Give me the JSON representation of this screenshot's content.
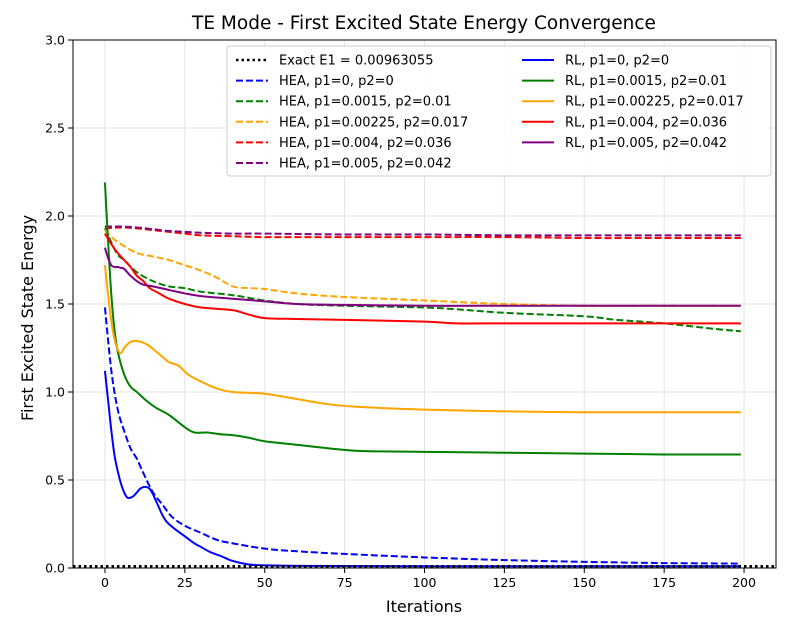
{
  "chart_data": {
    "type": "line",
    "title": "TE Mode - First Excited State Energy Convergence",
    "xlabel": "Iterations",
    "ylabel": "First Excited State Energy",
    "xlim": [
      -10,
      210
    ],
    "ylim": [
      0.0,
      3.0
    ],
    "xticks": [
      0,
      25,
      50,
      75,
      100,
      125,
      150,
      175,
      200
    ],
    "yticks": [
      0.0,
      0.5,
      1.0,
      1.5,
      2.0,
      2.5,
      3.0
    ],
    "xtick_labels": [
      "0",
      "25",
      "50",
      "75",
      "100",
      "125",
      "150",
      "175",
      "200"
    ],
    "ytick_labels": [
      "0.0",
      "0.5",
      "1.0",
      "1.5",
      "2.0",
      "2.5",
      "3.0"
    ],
    "grid": true,
    "legend_position": "top-right",
    "reference_line": {
      "name": "Exact E1 = 0.00963055",
      "value": 0.00963055,
      "color": "#000000",
      "style": "dotted"
    },
    "series": [
      {
        "name": "HEA, p1=0, p2=0",
        "color": "#0000ff",
        "style": "dashed",
        "x": [
          0,
          2,
          4,
          6,
          8,
          10,
          12,
          15,
          18,
          21,
          25,
          30,
          35,
          40,
          50,
          60,
          75,
          100,
          125,
          150,
          175,
          199
        ],
        "y": [
          1.48,
          1.12,
          0.9,
          0.78,
          0.68,
          0.62,
          0.54,
          0.43,
          0.36,
          0.29,
          0.24,
          0.2,
          0.16,
          0.14,
          0.11,
          0.095,
          0.08,
          0.06,
          0.045,
          0.035,
          0.028,
          0.025
        ]
      },
      {
        "name": "HEA, p1=0.0015, p2=0.01",
        "color": "#008000",
        "style": "dashed",
        "x": [
          0,
          2,
          4,
          6,
          10,
          15,
          20,
          25,
          30,
          40,
          50,
          60,
          75,
          100,
          110,
          125,
          150,
          160,
          175,
          190,
          199
        ],
        "y": [
          1.93,
          1.85,
          1.78,
          1.75,
          1.68,
          1.63,
          1.6,
          1.59,
          1.57,
          1.55,
          1.52,
          1.5,
          1.49,
          1.48,
          1.47,
          1.45,
          1.43,
          1.41,
          1.39,
          1.36,
          1.345
        ]
      },
      {
        "name": "HEA, p1=0.00225, p2=0.017",
        "color": "#ffa500",
        "style": "dashed",
        "x": [
          0,
          2,
          5,
          10,
          15,
          20,
          25,
          30,
          35,
          40,
          45,
          50,
          60,
          75,
          100,
          125,
          150,
          175,
          199
        ],
        "y": [
          1.92,
          1.88,
          1.84,
          1.79,
          1.77,
          1.75,
          1.72,
          1.69,
          1.65,
          1.6,
          1.59,
          1.585,
          1.56,
          1.54,
          1.52,
          1.5,
          1.49,
          1.49,
          1.49
        ]
      },
      {
        "name": "HEA, p1=0.004, p2=0.036",
        "color": "#ff0000",
        "style": "dashed",
        "x": [
          0,
          5,
          10,
          15,
          20,
          25,
          30,
          40,
          50,
          75,
          100,
          125,
          150,
          175,
          199
        ],
        "y": [
          1.93,
          1.935,
          1.93,
          1.92,
          1.91,
          1.9,
          1.89,
          1.885,
          1.88,
          1.88,
          1.88,
          1.88,
          1.875,
          1.875,
          1.875
        ]
      },
      {
        "name": "HEA, p1=0.005, p2=0.042",
        "color": "#800080",
        "style": "dashed",
        "x": [
          0,
          5,
          10,
          15,
          20,
          25,
          30,
          40,
          50,
          75,
          100,
          125,
          150,
          175,
          199
        ],
        "y": [
          1.94,
          1.94,
          1.935,
          1.925,
          1.915,
          1.91,
          1.905,
          1.9,
          1.9,
          1.895,
          1.895,
          1.89,
          1.89,
          1.89,
          1.89
        ]
      },
      {
        "name": "RL, p1=0, p2=0",
        "color": "#0000ff",
        "style": "solid",
        "x": [
          0,
          1,
          2,
          3,
          4,
          5,
          6,
          7,
          8,
          9,
          10,
          11,
          12,
          13,
          14,
          15,
          16,
          17,
          18,
          19,
          20,
          22,
          25,
          28,
          30,
          33,
          36,
          40,
          45,
          50,
          60,
          75,
          100,
          150,
          199
        ],
        "y": [
          1.12,
          0.95,
          0.78,
          0.64,
          0.55,
          0.48,
          0.43,
          0.4,
          0.4,
          0.41,
          0.43,
          0.45,
          0.46,
          0.46,
          0.45,
          0.42,
          0.38,
          0.34,
          0.3,
          0.27,
          0.25,
          0.22,
          0.18,
          0.14,
          0.12,
          0.09,
          0.07,
          0.04,
          0.02,
          0.015,
          0.012,
          0.011,
          0.01,
          0.01,
          0.01
        ]
      },
      {
        "name": "RL, p1=0.0015, p2=0.01",
        "color": "#008000",
        "style": "solid",
        "x": [
          0,
          1,
          2,
          3,
          4,
          6,
          8,
          10,
          13,
          16,
          20,
          25,
          28,
          32,
          36,
          40,
          45,
          50,
          60,
          70,
          80,
          100,
          125,
          150,
          175,
          199
        ],
        "y": [
          2.19,
          1.85,
          1.55,
          1.35,
          1.23,
          1.1,
          1.03,
          1.0,
          0.95,
          0.91,
          0.87,
          0.8,
          0.77,
          0.77,
          0.76,
          0.755,
          0.74,
          0.72,
          0.7,
          0.68,
          0.665,
          0.66,
          0.655,
          0.65,
          0.645,
          0.645
        ]
      },
      {
        "name": "RL, p1=0.00225, p2=0.017",
        "color": "#ffa500",
        "style": "solid",
        "x": [
          0,
          1,
          2,
          3,
          4,
          5,
          6,
          7,
          8,
          9,
          10,
          12,
          14,
          16,
          18,
          20,
          23,
          26,
          30,
          35,
          40,
          50,
          60,
          70,
          80,
          100,
          125,
          150,
          175,
          199
        ],
        "y": [
          1.72,
          1.55,
          1.4,
          1.3,
          1.24,
          1.22,
          1.25,
          1.27,
          1.285,
          1.29,
          1.29,
          1.28,
          1.26,
          1.23,
          1.2,
          1.17,
          1.15,
          1.1,
          1.06,
          1.02,
          1.0,
          0.99,
          0.96,
          0.93,
          0.915,
          0.9,
          0.89,
          0.885,
          0.885,
          0.885
        ]
      },
      {
        "name": "RL, p1=0.004, p2=0.036",
        "color": "#ff0000",
        "style": "solid",
        "x": [
          0,
          2,
          4,
          6,
          8,
          10,
          12,
          14,
          16,
          18,
          20,
          25,
          30,
          40,
          45,
          50,
          60,
          75,
          100,
          110,
          125,
          150,
          175,
          199
        ],
        "y": [
          1.9,
          1.84,
          1.79,
          1.75,
          1.71,
          1.66,
          1.63,
          1.59,
          1.57,
          1.55,
          1.53,
          1.5,
          1.48,
          1.465,
          1.44,
          1.42,
          1.415,
          1.41,
          1.4,
          1.39,
          1.39,
          1.39,
          1.39,
          1.39
        ]
      },
      {
        "name": "RL, p1=0.005, p2=0.042",
        "color": "#800080",
        "style": "solid",
        "x": [
          0,
          1,
          2,
          3,
          4,
          5,
          6,
          8,
          10,
          12,
          15,
          20,
          25,
          30,
          40,
          50,
          60,
          75,
          100,
          125,
          150,
          175,
          199
        ],
        "y": [
          1.82,
          1.76,
          1.72,
          1.71,
          1.71,
          1.705,
          1.7,
          1.66,
          1.63,
          1.61,
          1.6,
          1.58,
          1.56,
          1.545,
          1.53,
          1.515,
          1.5,
          1.495,
          1.49,
          1.49,
          1.49,
          1.49,
          1.49
        ]
      }
    ]
  }
}
